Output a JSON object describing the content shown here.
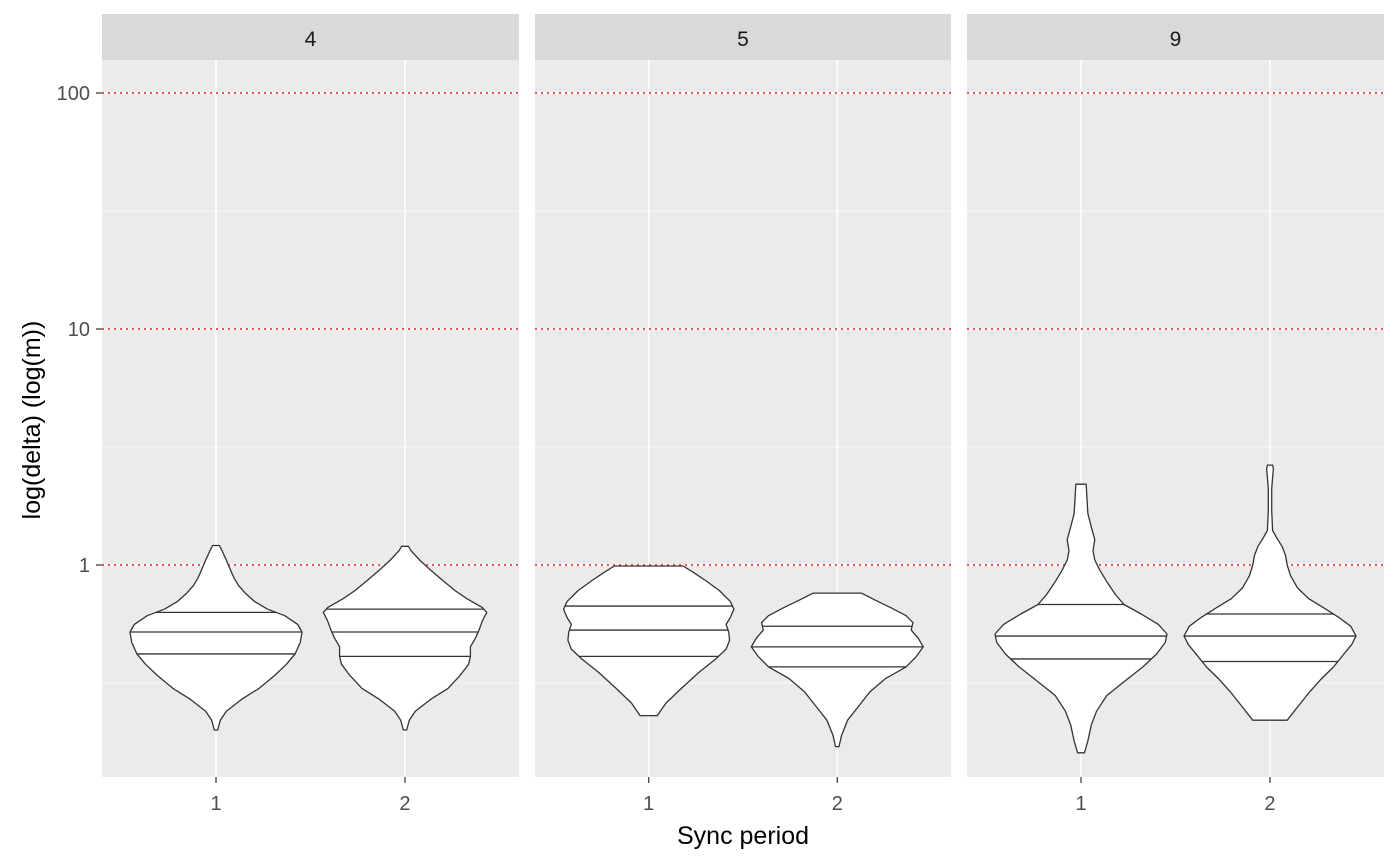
{
  "chart_data": {
    "type": "violin",
    "facet_by": "panel",
    "xlabel": "Sync period",
    "ylabel": "log(delta) (log(m))",
    "y_scale": "log10",
    "ylim": [
      0.13,
      200
    ],
    "y_ticks": [
      1,
      10,
      100
    ],
    "y_tick_labels": [
      "1",
      "10",
      "100"
    ],
    "reference_lines": {
      "y": [
        1,
        10,
        100
      ],
      "color": "#ee2222",
      "style": "dotted"
    },
    "categories": [
      "1",
      "2"
    ],
    "colors": {
      "panel_bg": "#ebebeb",
      "strip_bg": "#d9d9d9",
      "grid": "#ffffff",
      "violin_fill": "#ffffff",
      "violin_stroke": "#333333"
    },
    "quantiles_drawn": [
      0.25,
      0.5,
      0.75
    ],
    "panels": [
      {
        "label": "4",
        "violins": [
          {
            "category": "1",
            "quantiles": [
              0.42,
              0.52,
              0.63
            ],
            "profile": [
              [
                0.2,
                0.02
              ],
              [
                0.22,
                0.05
              ],
              [
                0.24,
                0.12
              ],
              [
                0.27,
                0.3
              ],
              [
                0.3,
                0.5
              ],
              [
                0.34,
                0.68
              ],
              [
                0.38,
                0.82
              ],
              [
                0.42,
                0.92
              ],
              [
                0.47,
                0.98
              ],
              [
                0.52,
                1.0
              ],
              [
                0.56,
                0.95
              ],
              [
                0.61,
                0.8
              ],
              [
                0.65,
                0.6
              ],
              [
                0.7,
                0.45
              ],
              [
                0.76,
                0.34
              ],
              [
                0.82,
                0.26
              ],
              [
                0.88,
                0.21
              ],
              [
                0.95,
                0.17
              ],
              [
                1.05,
                0.12
              ],
              [
                1.15,
                0.07
              ],
              [
                1.21,
                0.04
              ]
            ]
          },
          {
            "category": "2",
            "quantiles": [
              0.41,
              0.52,
              0.65
            ],
            "profile": [
              [
                0.2,
                0.02
              ],
              [
                0.22,
                0.05
              ],
              [
                0.24,
                0.12
              ],
              [
                0.27,
                0.3
              ],
              [
                0.3,
                0.5
              ],
              [
                0.34,
                0.64
              ],
              [
                0.38,
                0.74
              ],
              [
                0.41,
                0.76
              ],
              [
                0.45,
                0.76
              ],
              [
                0.49,
                0.82
              ],
              [
                0.53,
                0.86
              ],
              [
                0.58,
                0.9
              ],
              [
                0.63,
                0.95
              ],
              [
                0.66,
                0.9
              ],
              [
                0.72,
                0.72
              ],
              [
                0.78,
                0.58
              ],
              [
                0.86,
                0.44
              ],
              [
                0.95,
                0.3
              ],
              [
                1.05,
                0.17
              ],
              [
                1.15,
                0.07
              ],
              [
                1.2,
                0.04
              ]
            ]
          }
        ]
      },
      {
        "label": "5",
        "violins": [
          {
            "category": "1",
            "quantiles": [
              0.41,
              0.53,
              0.67
            ],
            "profile": [
              [
                0.23,
                0.1
              ],
              [
                0.26,
                0.2
              ],
              [
                0.3,
                0.38
              ],
              [
                0.35,
                0.58
              ],
              [
                0.4,
                0.78
              ],
              [
                0.44,
                0.9
              ],
              [
                0.48,
                0.94
              ],
              [
                0.52,
                0.93
              ],
              [
                0.56,
                0.9
              ],
              [
                0.6,
                0.95
              ],
              [
                0.65,
                0.99
              ],
              [
                0.7,
                0.95
              ],
              [
                0.78,
                0.82
              ],
              [
                0.86,
                0.66
              ],
              [
                0.93,
                0.52
              ],
              [
                0.99,
                0.4
              ]
            ]
          },
          {
            "category": "2",
            "quantiles": [
              0.37,
              0.45,
              0.55
            ],
            "profile": [
              [
                0.17,
                0.02
              ],
              [
                0.19,
                0.05
              ],
              [
                0.22,
                0.12
              ],
              [
                0.25,
                0.24
              ],
              [
                0.29,
                0.38
              ],
              [
                0.33,
                0.56
              ],
              [
                0.37,
                0.8
              ],
              [
                0.41,
                0.92
              ],
              [
                0.45,
                1.0
              ],
              [
                0.49,
                0.94
              ],
              [
                0.53,
                0.86
              ],
              [
                0.57,
                0.88
              ],
              [
                0.61,
                0.8
              ],
              [
                0.66,
                0.62
              ],
              [
                0.71,
                0.44
              ],
              [
                0.76,
                0.28
              ]
            ]
          }
        ]
      },
      {
        "label": "9",
        "violins": [
          {
            "category": "1",
            "quantiles": [
              0.4,
              0.5,
              0.68
            ],
            "profile": [
              [
                0.16,
                0.04
              ],
              [
                0.18,
                0.08
              ],
              [
                0.21,
                0.12
              ],
              [
                0.24,
                0.18
              ],
              [
                0.28,
                0.3
              ],
              [
                0.32,
                0.5
              ],
              [
                0.37,
                0.72
              ],
              [
                0.42,
                0.88
              ],
              [
                0.47,
                0.98
              ],
              [
                0.51,
                1.0
              ],
              [
                0.56,
                0.9
              ],
              [
                0.62,
                0.7
              ],
              [
                0.68,
                0.5
              ],
              [
                0.75,
                0.4
              ],
              [
                0.85,
                0.3
              ],
              [
                0.95,
                0.22
              ],
              [
                1.05,
                0.16
              ],
              [
                1.15,
                0.14
              ],
              [
                1.28,
                0.16
              ],
              [
                1.45,
                0.12
              ],
              [
                1.65,
                0.08
              ],
              [
                1.9,
                0.07
              ],
              [
                2.2,
                0.06
              ]
            ]
          },
          {
            "category": "2",
            "quantiles": [
              0.39,
              0.5,
              0.62
            ],
            "profile": [
              [
                0.22,
                0.2
              ],
              [
                0.25,
                0.32
              ],
              [
                0.29,
                0.46
              ],
              [
                0.33,
                0.6
              ],
              [
                0.37,
                0.74
              ],
              [
                0.42,
                0.86
              ],
              [
                0.46,
                0.95
              ],
              [
                0.5,
                1.0
              ],
              [
                0.55,
                0.94
              ],
              [
                0.6,
                0.8
              ],
              [
                0.66,
                0.62
              ],
              [
                0.72,
                0.45
              ],
              [
                0.8,
                0.32
              ],
              [
                0.9,
                0.24
              ],
              [
                1.0,
                0.2
              ],
              [
                1.1,
                0.18
              ],
              [
                1.2,
                0.14
              ],
              [
                1.3,
                0.08
              ],
              [
                1.4,
                0.03
              ],
              [
                1.7,
                0.02
              ],
              [
                2.1,
                0.02
              ],
              [
                2.35,
                0.03
              ],
              [
                2.55,
                0.04
              ],
              [
                2.65,
                0.03
              ]
            ]
          }
        ]
      }
    ]
  }
}
